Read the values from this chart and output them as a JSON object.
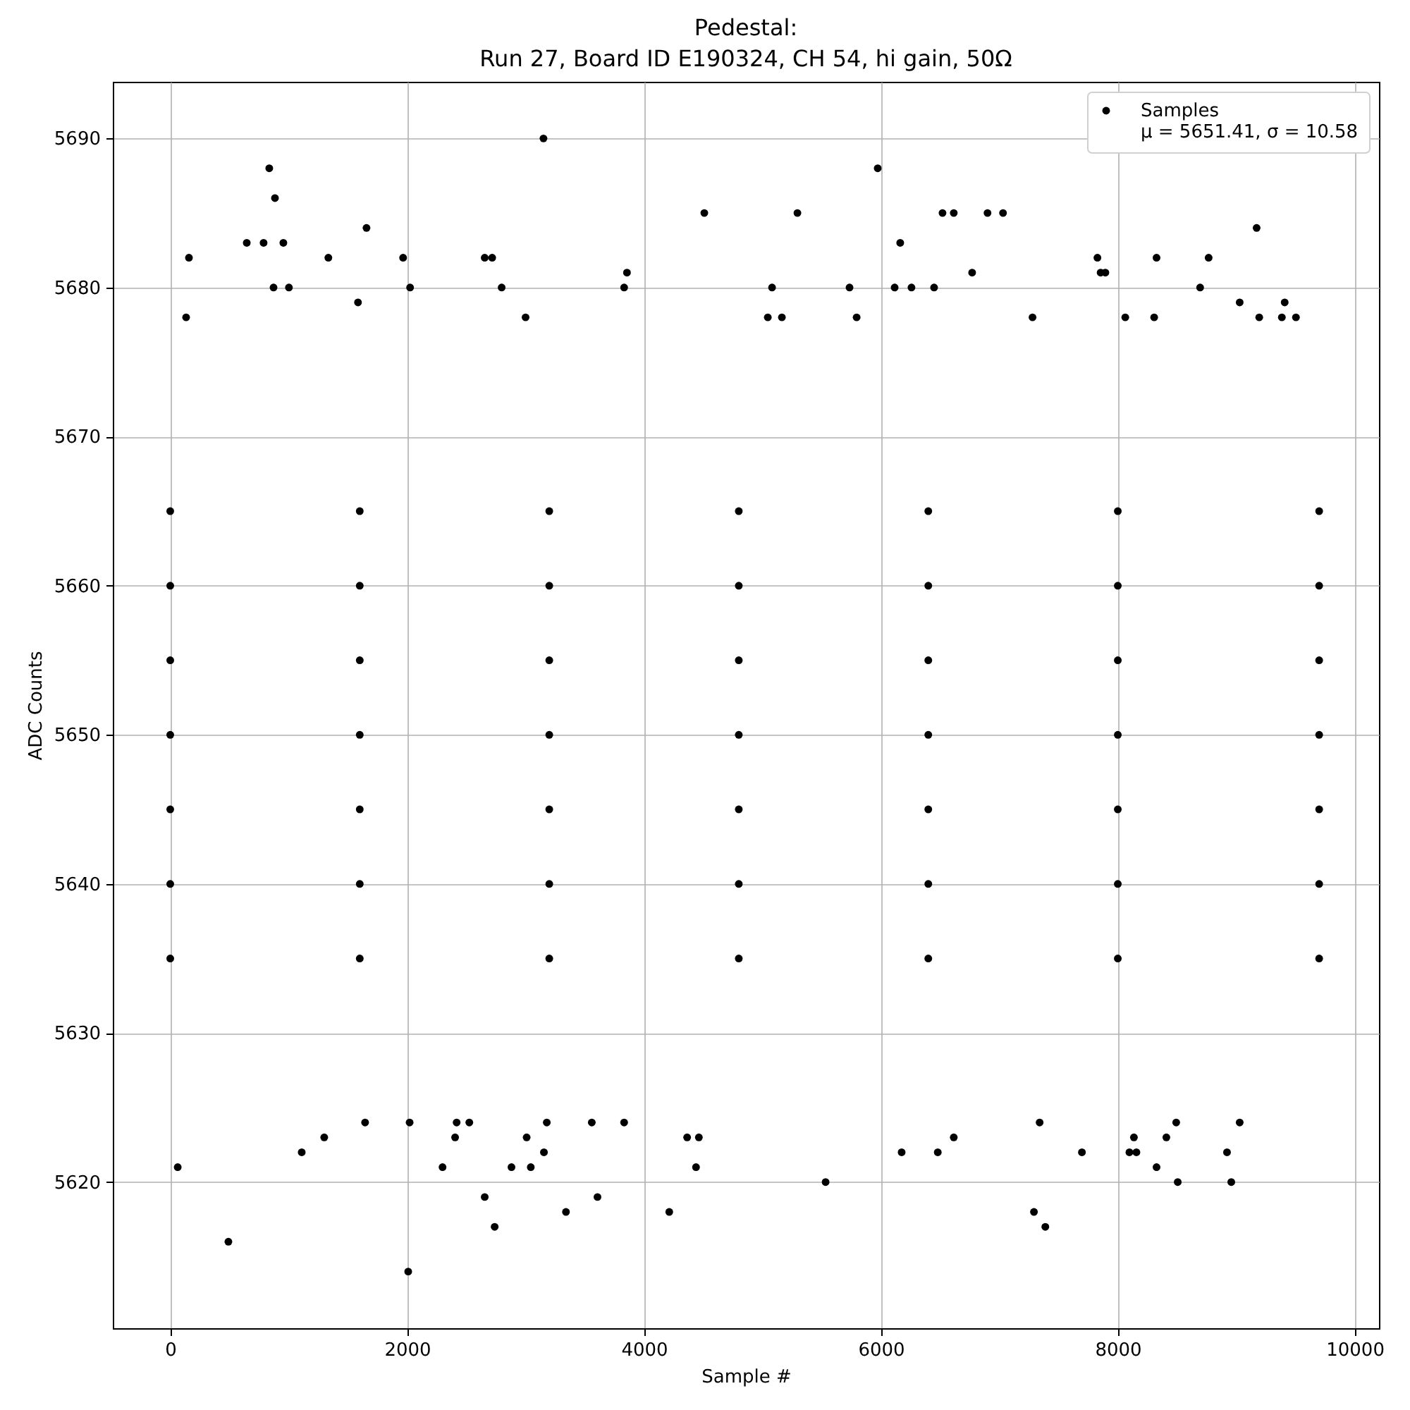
{
  "chart_data": {
    "type": "scatter",
    "title": "Pedestal:\nRun 27, Board ID E190324, CH 54, hi gain, 50Ω",
    "xlabel": "Sample #",
    "ylabel": "ADC Counts",
    "xlim": [
      -485,
      10205
    ],
    "ylim": [
      5610.2,
      5693.8
    ],
    "xticks": [
      0,
      2000,
      4000,
      6000,
      8000,
      10000
    ],
    "yticks": [
      5620,
      5630,
      5640,
      5650,
      5660,
      5670,
      5680,
      5690
    ],
    "grid": true,
    "legend": "top right",
    "marker": "circle",
    "series": [
      {
        "name": "Samples\nμ = 5651.41, σ = 10.58",
        "color": "#000000",
        "x": [
          3151,
          836,
          5973,
          884,
          4509,
          5295,
          6520,
          6615,
          6900,
          7031,
          1657,
          9172,
          646,
          788,
          955,
          6163,
          158,
          1335,
          1966,
          2655,
          2718,
          7828,
          8327,
          8767,
          3856,
          6770,
          7855,
          7895,
          872,
          1002,
          2025,
          2798,
          3832,
          5081,
          5735,
          6116,
          6258,
          6449,
          8695,
          1585,
          9029,
          9409,
          134,
          3000,
          5045,
          5164,
          5795,
          7280,
          8063,
          8307,
          9194,
          9385,
          9504,
          0,
          1600,
          3200,
          4800,
          6400,
          8000,
          9700,
          0,
          1600,
          3200,
          4800,
          6400,
          8000,
          9700,
          0,
          1600,
          3200,
          4800,
          6400,
          8000,
          9700,
          0,
          1600,
          3200,
          4800,
          6400,
          8000,
          9700,
          0,
          1600,
          3200,
          4800,
          6400,
          8000,
          9700,
          0,
          1600,
          3200,
          4800,
          6400,
          8000,
          9700,
          0,
          1600,
          3200,
          4800,
          6400,
          8000,
          9700,
          2009,
          491,
          2739,
          7388,
          3341,
          4213,
          7292,
          2655,
          3607,
          5533,
          8506,
          8958,
          63,
          2299,
          2881,
          3044,
          4439,
          8327,
          1110,
          3155,
          6175,
          6480,
          7697,
          8098,
          8157,
          8922,
          1300,
          2405,
          3009,
          4364,
          4463,
          6615,
          8136,
          8410,
          1645,
          2021,
          2418,
          2525,
          3179,
          3559,
          3832,
          7340,
          8493,
          9029
        ],
        "values": [
          5690,
          5688,
          5688,
          5686,
          5685,
          5685,
          5685,
          5685,
          5685,
          5685,
          5684,
          5684,
          5683,
          5683,
          5683,
          5683,
          5682,
          5682,
          5682,
          5682,
          5682,
          5682,
          5682,
          5682,
          5681,
          5681,
          5681,
          5681,
          5680,
          5680,
          5680,
          5680,
          5680,
          5680,
          5680,
          5680,
          5680,
          5680,
          5680,
          5679,
          5679,
          5679,
          5678,
          5678,
          5678,
          5678,
          5678,
          5678,
          5678,
          5678,
          5678,
          5678,
          5678,
          5665,
          5665,
          5665,
          5665,
          5665,
          5665,
          5665,
          5660,
          5660,
          5660,
          5660,
          5660,
          5660,
          5660,
          5655,
          5655,
          5655,
          5655,
          5655,
          5655,
          5655,
          5650,
          5650,
          5650,
          5650,
          5650,
          5650,
          5650,
          5645,
          5645,
          5645,
          5645,
          5645,
          5645,
          5645,
          5640,
          5640,
          5640,
          5640,
          5640,
          5640,
          5640,
          5635,
          5635,
          5635,
          5635,
          5635,
          5635,
          5635,
          5614,
          5616,
          5617,
          5617,
          5618,
          5618,
          5618,
          5619,
          5619,
          5620,
          5620,
          5620,
          5621,
          5621,
          5621,
          5621,
          5621,
          5621,
          5622,
          5622,
          5622,
          5622,
          5622,
          5622,
          5622,
          5622,
          5623,
          5623,
          5623,
          5623,
          5623,
          5623,
          5623,
          5623,
          5624,
          5624,
          5624,
          5624,
          5624,
          5624,
          5624,
          5624,
          5624,
          5624
        ]
      }
    ]
  }
}
